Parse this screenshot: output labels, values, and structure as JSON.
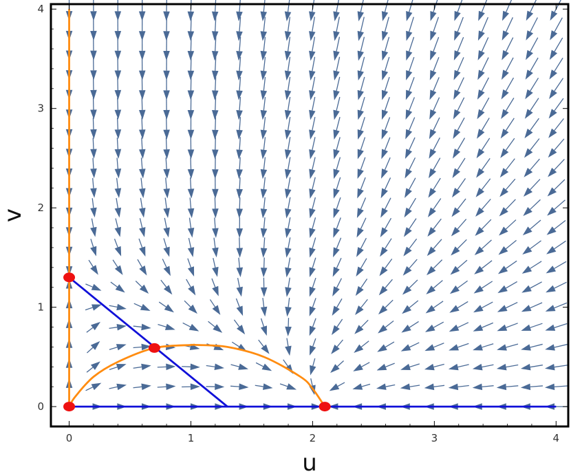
{
  "chart_data": {
    "type": "scatter",
    "subtype": "vector-field-phase-portrait",
    "title": "",
    "xlabel": "u",
    "ylabel": "v",
    "xlim": [
      -0.15,
      4.1
    ],
    "ylim": [
      -0.2,
      4.05
    ],
    "x_ticks": [
      "0",
      "1",
      "2",
      "3",
      "4"
    ],
    "y_ticks": [
      "0",
      "1",
      "2",
      "3",
      "4"
    ],
    "grid": false,
    "colors": {
      "arrows": "#4a6a96",
      "nullcline_blue": "#1010d8",
      "nullcline_orange": "#ff8c10",
      "equilibria": "#ee1111",
      "frame": "#000000"
    },
    "vector_field": {
      "u_prime": "u*(2.1 - u - 0.4*v)",
      "v_prime": "v*(1.3 - u - v)",
      "grid_u_step": 0.2,
      "grid_v_step": 0.2
    },
    "series": [
      {
        "kind": "line",
        "color": "blue",
        "x": [
          0,
          1.3
        ],
        "y": [
          1.3,
          0
        ]
      },
      {
        "kind": "line",
        "color": "blue",
        "x": [
          0,
          4
        ],
        "y": [
          0,
          0
        ]
      },
      {
        "kind": "line",
        "color": "orange",
        "x": [
          0,
          0
        ],
        "y": [
          0,
          4
        ]
      },
      {
        "kind": "curve",
        "color": "orange",
        "x": [
          0,
          0.05,
          0.2,
          0.4,
          0.7,
          1.0,
          1.05,
          1.3,
          1.6,
          1.9,
          2.0,
          2.1
        ],
        "y": [
          0,
          0.1,
          0.3,
          0.45,
          0.59,
          0.62,
          0.62,
          0.6,
          0.5,
          0.3,
          0.18,
          0
        ]
      },
      {
        "kind": "points",
        "color": "red",
        "x": [
          0,
          0,
          0.7,
          2.1
        ],
        "y": [
          0,
          1.3,
          0.59,
          0
        ]
      }
    ]
  }
}
